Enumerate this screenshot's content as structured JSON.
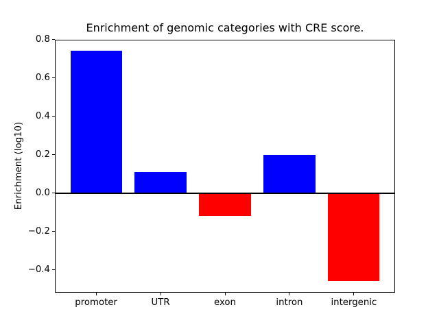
{
  "figure": {
    "title": "Enrichment of genomic categories with CRE score.",
    "ylabel": "Enrichment (log10)",
    "xlabel": "",
    "background_color": "#ffffff",
    "spine_color": "#000000"
  },
  "chart_data": {
    "type": "bar",
    "title": "Enrichment of genomic categories with CRE score.",
    "xlabel": "",
    "ylabel": "Enrichment (log10)",
    "categories": [
      "promoter",
      "UTR",
      "exon",
      "intron",
      "intergenic"
    ],
    "values": [
      0.74,
      0.11,
      -0.12,
      0.2,
      -0.46
    ],
    "bar_colors": [
      "#0000ff",
      "#0000ff",
      "#ff0000",
      "#0000ff",
      "#ff0000"
    ],
    "positive_color": "#0000ff",
    "negative_color": "#ff0000",
    "bar_width_fraction": 0.8,
    "xlim": [
      -0.64,
      4.64
    ],
    "ylim": [
      -0.52,
      0.8
    ],
    "yticks": [
      {
        "value": -0.4,
        "label": "−0.4"
      },
      {
        "value": -0.2,
        "label": "−0.2"
      },
      {
        "value": 0.0,
        "label": "0.0"
      },
      {
        "value": 0.2,
        "label": "0.2"
      },
      {
        "value": 0.4,
        "label": "0.4"
      },
      {
        "value": 0.6,
        "label": "0.6"
      },
      {
        "value": 0.8,
        "label": "0.8"
      }
    ],
    "zero_line": {
      "show": true,
      "color": "#000000",
      "thickness_px": 2
    },
    "grid": false,
    "legend": null
  }
}
